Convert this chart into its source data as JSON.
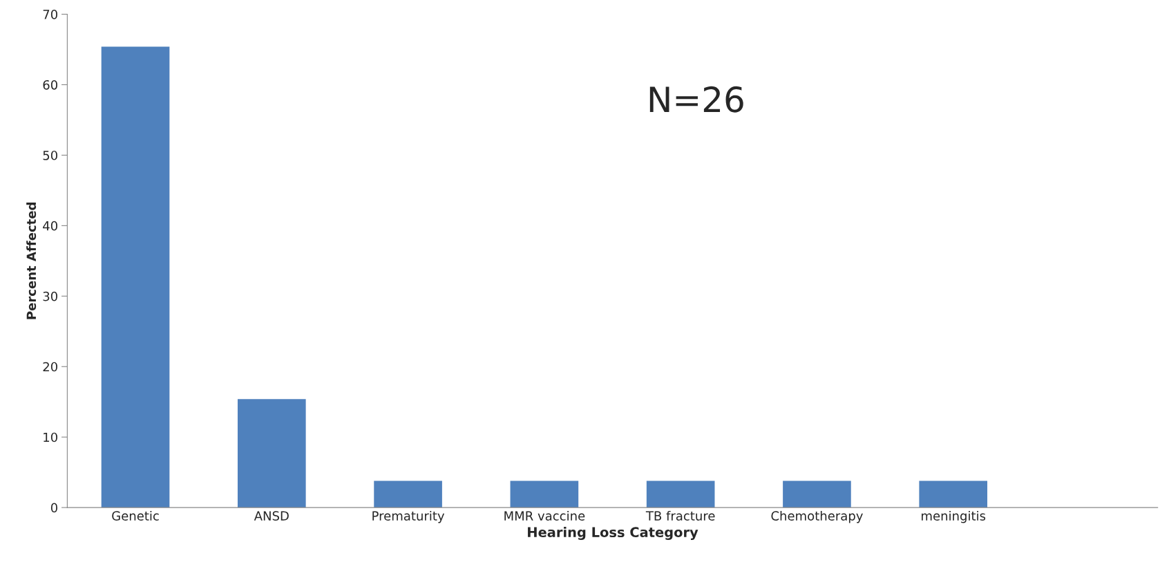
{
  "chart_data": {
    "type": "bar",
    "xlabel": "Hearing Loss Category",
    "ylabel": "Percent Affected",
    "categories": [
      "Genetic",
      "ANSD",
      "Prematurity",
      "MMR vaccine",
      "TB fracture",
      "Chemotherapy",
      "meningitis",
      null
    ],
    "values": [
      65.4,
      15.4,
      3.8,
      3.8,
      3.8,
      3.8,
      3.8,
      null
    ],
    "color": "#4f81bd",
    "ylim": [
      0,
      70
    ],
    "yticks": [
      0,
      10,
      20,
      30,
      40,
      50,
      60,
      70
    ],
    "grid": false,
    "legend": false,
    "annotations": [
      "N=26"
    ]
  }
}
